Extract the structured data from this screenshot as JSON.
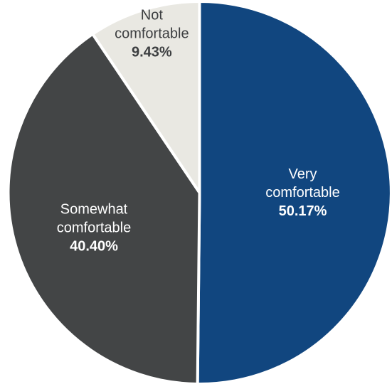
{
  "chart_data": {
    "type": "pie",
    "title": "",
    "start_angle_deg": 0,
    "direction": "clockwise",
    "slice_border_color": "#ffffff",
    "slices": [
      {
        "label_lines": [
          "Very",
          "comfortable"
        ],
        "value_label": "50.17%",
        "value": 50.17,
        "color": "#11467f",
        "text_color": "#ffffff"
      },
      {
        "label_lines": [
          "Somewhat",
          "comfortable"
        ],
        "value_label": "40.40%",
        "value": 40.4,
        "color": "#434546",
        "text_color": "#ffffff"
      },
      {
        "label_lines": [
          "Not",
          "comfortable"
        ],
        "value_label": "9.43%",
        "value": 9.43,
        "color": "#e9e8e2",
        "text_color": "#3c3e40"
      }
    ]
  }
}
